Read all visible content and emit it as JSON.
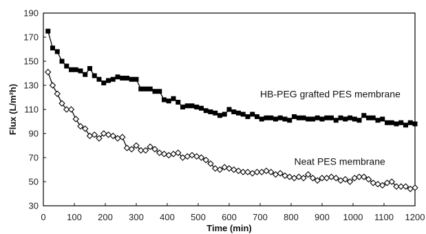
{
  "chart_data": {
    "type": "line",
    "xlabel": "Time (min)",
    "ylabel": "Flux (L/m²h)",
    "xlim": [
      0,
      1200
    ],
    "ylim": [
      30,
      190
    ],
    "xticks": [
      0,
      100,
      200,
      300,
      400,
      500,
      600,
      700,
      800,
      900,
      1000,
      1100,
      1200
    ],
    "yticks": [
      30,
      50,
      70,
      90,
      110,
      130,
      150,
      170,
      190
    ],
    "grid": false,
    "legend": "none",
    "series": [
      {
        "name": "HB-PEG grafted PES membrane",
        "marker": "filled-square",
        "color": "#000000",
        "x": [
          15,
          30,
          45,
          60,
          75,
          90,
          105,
          120,
          135,
          150,
          165,
          180,
          195,
          210,
          225,
          240,
          255,
          270,
          285,
          300,
          315,
          330,
          345,
          360,
          375,
          390,
          405,
          420,
          435,
          450,
          465,
          480,
          495,
          510,
          525,
          540,
          555,
          570,
          585,
          600,
          615,
          630,
          645,
          660,
          675,
          690,
          705,
          720,
          735,
          750,
          765,
          780,
          795,
          810,
          825,
          840,
          855,
          870,
          885,
          900,
          915,
          930,
          945,
          960,
          975,
          990,
          1005,
          1020,
          1035,
          1050,
          1065,
          1080,
          1095,
          1110,
          1125,
          1140,
          1155,
          1170,
          1185,
          1200
        ],
        "y": [
          175,
          161,
          158,
          150,
          146,
          143,
          143,
          142,
          139,
          144,
          138,
          135,
          132,
          134,
          135,
          137,
          136,
          136,
          135,
          135,
          127,
          127,
          127,
          125,
          125,
          118,
          117,
          119,
          116,
          112,
          113,
          113,
          112,
          111,
          109,
          108,
          107,
          105,
          106,
          110,
          108,
          107,
          106,
          104,
          106,
          104,
          102,
          103,
          103,
          102,
          103,
          102,
          101,
          104,
          103,
          103,
          102,
          102,
          103,
          102,
          103,
          103,
          101,
          103,
          102,
          103,
          102,
          101,
          105,
          103,
          103,
          101,
          102,
          99,
          99,
          98,
          99,
          97,
          99,
          98
        ]
      },
      {
        "name": "Neat PES membrane",
        "marker": "open-diamond",
        "color": "#000000",
        "x": [
          15,
          30,
          45,
          60,
          75,
          90,
          105,
          120,
          135,
          150,
          165,
          180,
          195,
          210,
          225,
          240,
          255,
          270,
          285,
          300,
          315,
          330,
          345,
          360,
          375,
          390,
          405,
          420,
          435,
          450,
          465,
          480,
          495,
          510,
          525,
          540,
          555,
          570,
          585,
          600,
          615,
          630,
          645,
          660,
          675,
          690,
          705,
          720,
          735,
          750,
          765,
          780,
          795,
          810,
          825,
          840,
          855,
          870,
          885,
          900,
          915,
          930,
          945,
          960,
          975,
          990,
          1005,
          1020,
          1035,
          1050,
          1065,
          1080,
          1095,
          1110,
          1125,
          1140,
          1155,
          1170,
          1185,
          1200
        ],
        "y": [
          141,
          130,
          123,
          115,
          110,
          110,
          102,
          96,
          94,
          88,
          89,
          86,
          90,
          89,
          88,
          86,
          87,
          78,
          77,
          80,
          76,
          76,
          79,
          77,
          74,
          73,
          72,
          73,
          74,
          70,
          71,
          72,
          71,
          70,
          68,
          65,
          61,
          60,
          62,
          61,
          60,
          59,
          58,
          58,
          57,
          58,
          58,
          59,
          58,
          56,
          57,
          55,
          54,
          53,
          54,
          53,
          56,
          53,
          51,
          53,
          53,
          54,
          53,
          51,
          52,
          50,
          53,
          54,
          54,
          52,
          49,
          48,
          47,
          49,
          50,
          46,
          46,
          46,
          44,
          45
        ]
      }
    ],
    "annotations": [
      {
        "text": "HB-PEG grafted PES membrane",
        "x": 700,
        "y": 120
      },
      {
        "text": "Neat PES membrane",
        "x": 810,
        "y": 64
      }
    ]
  }
}
